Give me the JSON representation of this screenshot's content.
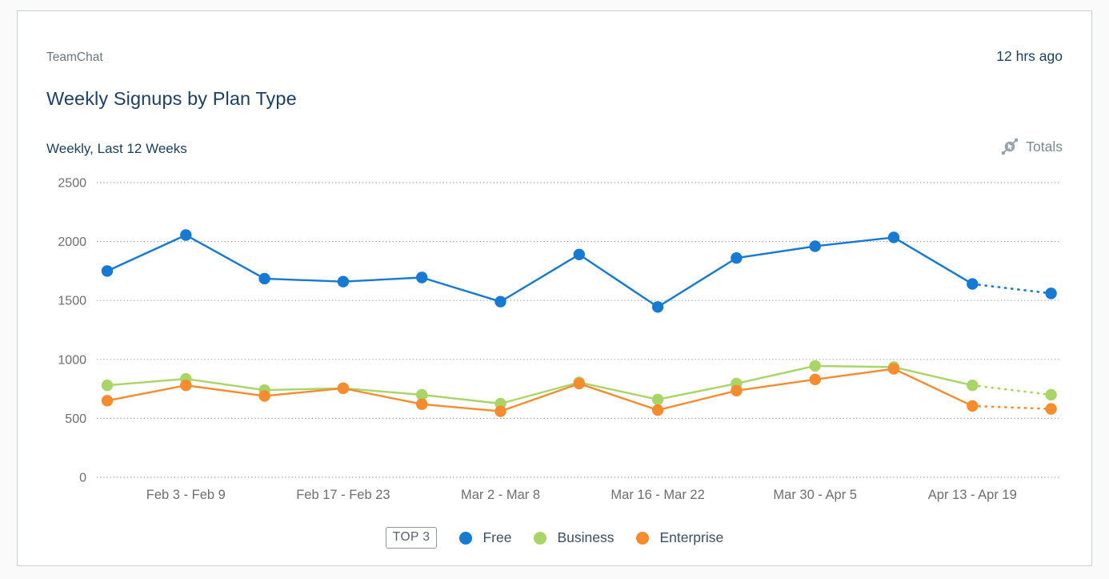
{
  "header": {
    "app_name": "TeamChat",
    "updated": "12 hrs ago"
  },
  "title": "Weekly Signups by Plan Type",
  "subtitle": "Weekly, Last 12 Weeks",
  "totals_label": "Totals",
  "legend": {
    "top_badge": "TOP 3"
  },
  "colors": {
    "grid": "#9b9b9b",
    "axis_text": "#6e6e6e",
    "accent_navy": "#1c4066"
  },
  "chart_data": {
    "type": "line",
    "title": "Weekly Signups by Plan Type",
    "subtitle": "Weekly, Last 12 Weeks",
    "categories": [
      "",
      "Feb 3 - Feb 9",
      "",
      "Feb 17 - Feb 23",
      "",
      "Mar 2 - Mar 8",
      "",
      "Mar 16 - Mar 22",
      "",
      "Mar 30 - Apr 5",
      "",
      "Apr 13 - Apr 19",
      ""
    ],
    "series": [
      {
        "name": "Free",
        "color": "#1679d2",
        "values": [
          1750,
          2055,
          1685,
          1660,
          1695,
          1490,
          1890,
          1445,
          1860,
          1960,
          2035,
          1640,
          1560
        ]
      },
      {
        "name": "Business",
        "color": "#a9d566",
        "values": [
          780,
          835,
          740,
          755,
          700,
          625,
          805,
          660,
          795,
          945,
          935,
          780,
          700
        ]
      },
      {
        "name": "Enterprise",
        "color": "#f78b2e",
        "values": [
          650,
          780,
          690,
          755,
          620,
          560,
          795,
          570,
          735,
          830,
          920,
          605,
          580
        ]
      }
    ],
    "ylim": [
      0,
      2500
    ],
    "y_ticks": [
      0,
      500,
      1000,
      1500,
      2000,
      2500
    ],
    "grid": "horizontal-dotted",
    "legend_position": "bottom",
    "last_segment_dashed": true
  }
}
